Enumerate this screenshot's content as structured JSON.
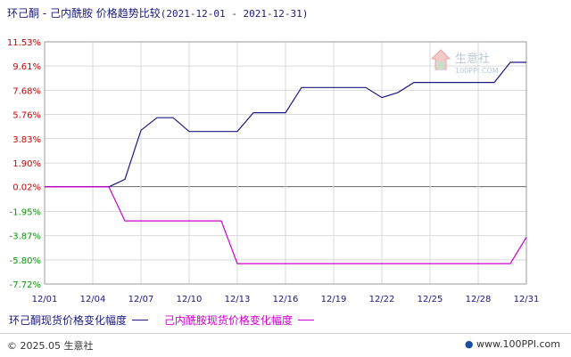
{
  "title": "环己酮 - 己内酰胺 价格趋势比较",
  "date_range": "(2021-12-01 - 2021-12-31)",
  "watermark": {
    "text": "生意社",
    "url": "100PPI.COM"
  },
  "footer": {
    "copyright": "© 2025.05 生意社",
    "site": "www.100PPI.com"
  },
  "colors": {
    "series1": "#1a1a80",
    "series2": "#cc00cc",
    "grid": "#d9d9d9",
    "zero": "#666666"
  },
  "chart_data": {
    "type": "line",
    "xlabel": "",
    "ylabel": "",
    "x_ticks": [
      "12/01",
      "12/04",
      "12/07",
      "12/10",
      "12/13",
      "12/16",
      "12/19",
      "12/22",
      "12/25",
      "12/28",
      "12/31"
    ],
    "y_ticks": [
      {
        "value": 11.53,
        "label": "11.53%"
      },
      {
        "value": 9.61,
        "label": "9.61%"
      },
      {
        "value": 7.68,
        "label": "7.68%"
      },
      {
        "value": 5.76,
        "label": "5.76%"
      },
      {
        "value": 3.83,
        "label": "3.83%"
      },
      {
        "value": 1.9,
        "label": "1.90%"
      },
      {
        "value": 0.02,
        "label": "0.02%"
      },
      {
        "value": -1.95,
        "label": "-1.95%"
      },
      {
        "value": -3.87,
        "label": "-3.87%"
      },
      {
        "value": -5.8,
        "label": "-5.80%"
      },
      {
        "value": -7.72,
        "label": "-7.72%"
      }
    ],
    "ylim": [
      -7.72,
      11.53
    ],
    "xlim": [
      1,
      31
    ],
    "grid": true,
    "legend_position": "bottom",
    "series": [
      {
        "name": "环己酮现货价格变化幅度",
        "color": "#1a1a80",
        "points": [
          [
            1,
            0
          ],
          [
            2,
            0
          ],
          [
            3,
            0
          ],
          [
            4,
            0
          ],
          [
            5,
            0
          ],
          [
            6,
            0.6
          ],
          [
            7,
            4.5
          ],
          [
            8,
            5.5
          ],
          [
            9,
            5.5
          ],
          [
            10,
            4.4
          ],
          [
            11,
            4.4
          ],
          [
            12,
            4.4
          ],
          [
            13,
            4.4
          ],
          [
            14,
            5.9
          ],
          [
            15,
            5.9
          ],
          [
            16,
            5.9
          ],
          [
            17,
            7.9
          ],
          [
            18,
            7.9
          ],
          [
            19,
            7.9
          ],
          [
            20,
            7.9
          ],
          [
            21,
            7.9
          ],
          [
            22,
            7.1
          ],
          [
            23,
            7.5
          ],
          [
            24,
            8.3
          ],
          [
            25,
            8.3
          ],
          [
            26,
            8.3
          ],
          [
            27,
            8.3
          ],
          [
            28,
            8.3
          ],
          [
            29,
            8.3
          ],
          [
            30,
            9.9
          ],
          [
            31,
            9.9
          ]
        ]
      },
      {
        "name": "己内酰胺现货价格变化幅度",
        "color": "#cc00cc",
        "points": [
          [
            1,
            0
          ],
          [
            2,
            0
          ],
          [
            3,
            0
          ],
          [
            4,
            0
          ],
          [
            5,
            0
          ],
          [
            6,
            -2.7
          ],
          [
            7,
            -2.7
          ],
          [
            8,
            -2.7
          ],
          [
            9,
            -2.7
          ],
          [
            10,
            -2.7
          ],
          [
            11,
            -2.7
          ],
          [
            12,
            -2.7
          ],
          [
            13,
            -6.1
          ],
          [
            14,
            -6.1
          ],
          [
            15,
            -6.1
          ],
          [
            16,
            -6.1
          ],
          [
            17,
            -6.1
          ],
          [
            18,
            -6.1
          ],
          [
            19,
            -6.1
          ],
          [
            20,
            -6.1
          ],
          [
            21,
            -6.1
          ],
          [
            22,
            -6.1
          ],
          [
            23,
            -6.1
          ],
          [
            24,
            -6.1
          ],
          [
            25,
            -6.1
          ],
          [
            26,
            -6.1
          ],
          [
            27,
            -6.1
          ],
          [
            28,
            -6.1
          ],
          [
            29,
            -6.1
          ],
          [
            30,
            -6.1
          ],
          [
            31,
            -4.0
          ]
        ]
      }
    ]
  }
}
